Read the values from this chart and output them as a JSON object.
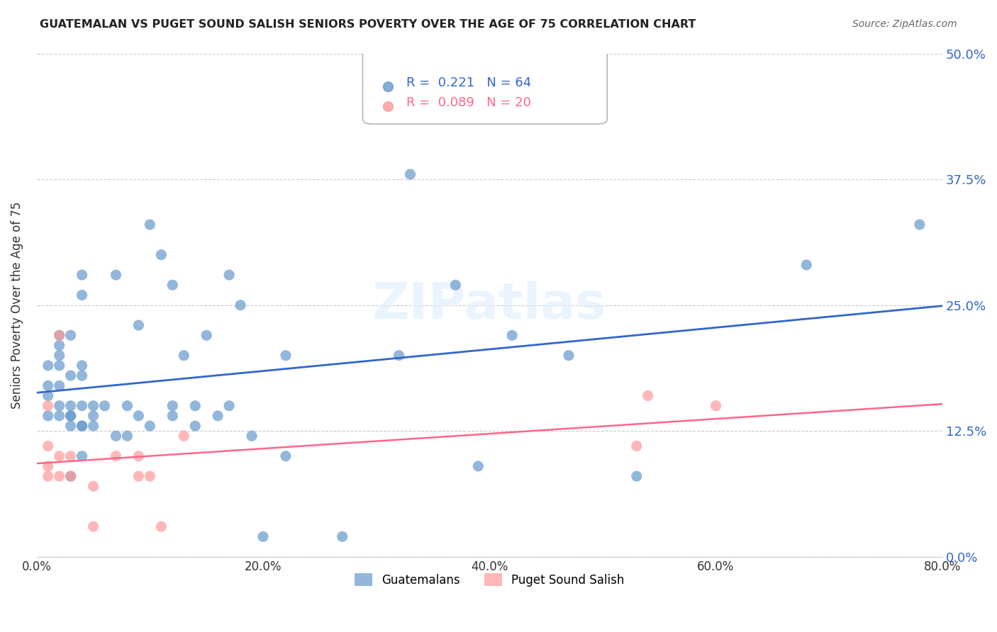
{
  "title": "GUATEMALAN VS PUGET SOUND SALISH SENIORS POVERTY OVER THE AGE OF 75 CORRELATION CHART",
  "source": "Source: ZipAtlas.com",
  "ylabel": "Seniors Poverty Over the Age of 75",
  "xlabel_ticks": [
    "0.0%",
    "20.0%",
    "40.0%",
    "60.0%",
    "80.0%"
  ],
  "xlabel_vals": [
    0.0,
    0.2,
    0.4,
    0.6,
    0.8
  ],
  "ylabel_ticks": [
    "0.0%",
    "12.5%",
    "25.0%",
    "37.5%",
    "50.0%"
  ],
  "ylabel_vals": [
    0.0,
    0.125,
    0.25,
    0.375,
    0.5
  ],
  "xlim": [
    0.0,
    0.8
  ],
  "ylim": [
    0.0,
    0.5
  ],
  "blue_R": 0.221,
  "blue_N": 64,
  "pink_R": 0.089,
  "pink_N": 20,
  "blue_color": "#6699CC",
  "pink_color": "#FF9999",
  "blue_line_color": "#3366CC",
  "pink_line_color": "#FF6688",
  "watermark": "ZIPatlas",
  "legend_label_blue": "Guatemalans",
  "legend_label_pink": "Puget Sound Salish",
  "blue_x": [
    0.01,
    0.01,
    0.01,
    0.01,
    0.02,
    0.02,
    0.02,
    0.02,
    0.02,
    0.02,
    0.02,
    0.03,
    0.03,
    0.03,
    0.03,
    0.03,
    0.03,
    0.03,
    0.04,
    0.04,
    0.04,
    0.04,
    0.04,
    0.04,
    0.04,
    0.04,
    0.05,
    0.05,
    0.05,
    0.06,
    0.07,
    0.07,
    0.08,
    0.08,
    0.09,
    0.09,
    0.1,
    0.1,
    0.11,
    0.12,
    0.12,
    0.12,
    0.13,
    0.14,
    0.14,
    0.15,
    0.16,
    0.17,
    0.17,
    0.18,
    0.19,
    0.2,
    0.22,
    0.22,
    0.27,
    0.32,
    0.33,
    0.37,
    0.39,
    0.42,
    0.47,
    0.53,
    0.68,
    0.78
  ],
  "blue_y": [
    0.14,
    0.16,
    0.17,
    0.19,
    0.14,
    0.15,
    0.17,
    0.19,
    0.2,
    0.21,
    0.22,
    0.08,
    0.13,
    0.14,
    0.14,
    0.15,
    0.18,
    0.22,
    0.1,
    0.13,
    0.13,
    0.15,
    0.18,
    0.19,
    0.26,
    0.28,
    0.13,
    0.14,
    0.15,
    0.15,
    0.12,
    0.28,
    0.12,
    0.15,
    0.14,
    0.23,
    0.13,
    0.33,
    0.3,
    0.14,
    0.15,
    0.27,
    0.2,
    0.13,
    0.15,
    0.22,
    0.14,
    0.15,
    0.28,
    0.25,
    0.12,
    0.02,
    0.1,
    0.2,
    0.02,
    0.2,
    0.38,
    0.27,
    0.09,
    0.22,
    0.2,
    0.08,
    0.29,
    0.33
  ],
  "pink_x": [
    0.01,
    0.01,
    0.01,
    0.01,
    0.02,
    0.02,
    0.02,
    0.03,
    0.03,
    0.05,
    0.05,
    0.07,
    0.09,
    0.09,
    0.1,
    0.11,
    0.13,
    0.53,
    0.54,
    0.6
  ],
  "pink_y": [
    0.08,
    0.09,
    0.11,
    0.15,
    0.08,
    0.1,
    0.22,
    0.08,
    0.1,
    0.03,
    0.07,
    0.1,
    0.08,
    0.1,
    0.08,
    0.03,
    0.12,
    0.11,
    0.16,
    0.15
  ]
}
